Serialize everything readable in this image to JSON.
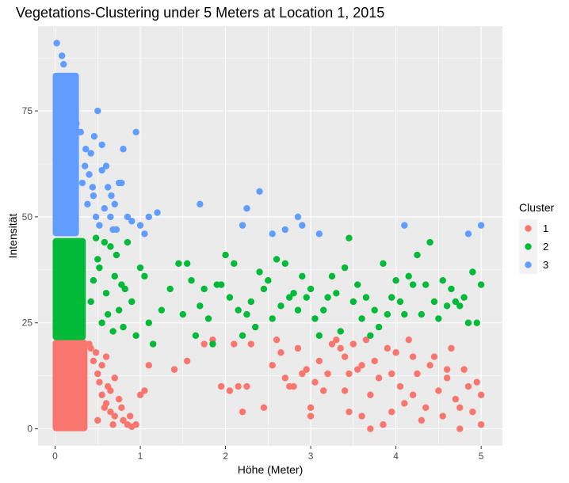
{
  "chart_data": {
    "type": "scatter",
    "title": "Vegetations-Clustering under 5 Meters at Location 1, 2015",
    "xlabel": "Höhe (Meter)",
    "ylabel": "Intensität",
    "xlim": [
      -0.2,
      5.25
    ],
    "ylim": [
      -4,
      95
    ],
    "x_ticks": [
      0,
      1,
      2,
      3,
      4,
      5
    ],
    "y_ticks": [
      0,
      25,
      50,
      75
    ],
    "grid": true,
    "legend": {
      "title": "Cluster",
      "position": "right",
      "entries": [
        {
          "label": "1",
          "color": "#F8766D"
        },
        {
          "label": "2",
          "color": "#00BA38"
        },
        {
          "label": "3",
          "color": "#619CFF"
        }
      ]
    },
    "dense_regions": [
      {
        "cluster": "1",
        "color": "#F8766D",
        "x_range": [
          0,
          0.38
        ],
        "y_range": [
          0,
          21
        ]
      },
      {
        "cluster": "2",
        "color": "#00BA38",
        "x_range": [
          0,
          0.36
        ],
        "y_range": [
          21.5,
          45
        ]
      },
      {
        "cluster": "3",
        "color": "#619CFF",
        "x_range": [
          0,
          0.28
        ],
        "y_range": [
          46,
          84
        ]
      }
    ],
    "series": [
      {
        "name": "1",
        "color": "#F8766D",
        "points": [
          [
            0.42,
            19
          ],
          [
            0.45,
            16
          ],
          [
            0.5,
            13
          ],
          [
            0.52,
            11
          ],
          [
            0.55,
            8
          ],
          [
            0.6,
            6
          ],
          [
            0.65,
            4
          ],
          [
            0.7,
            3
          ],
          [
            0.75,
            7
          ],
          [
            0.8,
            2
          ],
          [
            0.85,
            1
          ],
          [
            0.9,
            0.5
          ],
          [
            0.95,
            1
          ],
          [
            0.62,
            10
          ],
          [
            0.48,
            18
          ],
          [
            0.55,
            15
          ],
          [
            0.7,
            12
          ],
          [
            0.58,
            5
          ],
          [
            0.68,
            1
          ],
          [
            0.78,
            5
          ],
          [
            0.88,
            3
          ],
          [
            0.4,
            20
          ],
          [
            0.6,
            17
          ],
          [
            0.5,
            2
          ],
          [
            0.65,
            9
          ],
          [
            1.0,
            8
          ],
          [
            1.05,
            9
          ],
          [
            1.1,
            15
          ],
          [
            1.4,
            14
          ],
          [
            1.55,
            16
          ],
          [
            1.75,
            20
          ],
          [
            1.85,
            21
          ],
          [
            1.95,
            10
          ],
          [
            2.05,
            9
          ],
          [
            2.1,
            20
          ],
          [
            2.15,
            10
          ],
          [
            2.2,
            4
          ],
          [
            2.25,
            10
          ],
          [
            2.3,
            20
          ],
          [
            2.45,
            5
          ],
          [
            2.55,
            15
          ],
          [
            2.6,
            21
          ],
          [
            2.65,
            18
          ],
          [
            2.7,
            12
          ],
          [
            2.75,
            10
          ],
          [
            2.8,
            10
          ],
          [
            2.85,
            19
          ],
          [
            2.9,
            13
          ],
          [
            2.95,
            14
          ],
          [
            3.0,
            5
          ],
          [
            3.0,
            3
          ],
          [
            3.05,
            11
          ],
          [
            3.1,
            16
          ],
          [
            3.15,
            9
          ],
          [
            3.2,
            13
          ],
          [
            3.25,
            20
          ],
          [
            3.3,
            21
          ],
          [
            3.35,
            19
          ],
          [
            3.4,
            17
          ],
          [
            3.4,
            9
          ],
          [
            3.45,
            4
          ],
          [
            3.5,
            20
          ],
          [
            3.55,
            14
          ],
          [
            3.6,
            15
          ],
          [
            3.65,
            21
          ],
          [
            3.7,
            8
          ],
          [
            3.7,
            0
          ],
          [
            3.75,
            16
          ],
          [
            3.8,
            12
          ],
          [
            3.85,
            1
          ],
          [
            3.9,
            19
          ],
          [
            3.95,
            4
          ],
          [
            4.0,
            18
          ],
          [
            4.05,
            10
          ],
          [
            4.1,
            6
          ],
          [
            4.15,
            21
          ],
          [
            4.2,
            8
          ],
          [
            4.25,
            13
          ],
          [
            4.3,
            2
          ],
          [
            4.35,
            5
          ],
          [
            4.4,
            15
          ],
          [
            4.45,
            17
          ],
          [
            4.5,
            9
          ],
          [
            4.55,
            3
          ],
          [
            4.6,
            12
          ],
          [
            4.65,
            19
          ],
          [
            4.7,
            7
          ],
          [
            4.75,
            5
          ],
          [
            4.8,
            14
          ],
          [
            4.85,
            10
          ],
          [
            4.9,
            4
          ],
          [
            4.95,
            11
          ],
          [
            5.0,
            8
          ],
          [
            5.0,
            1
          ],
          [
            3.95,
            13
          ],
          [
            4.2,
            17
          ],
          [
            3.45,
            13
          ],
          [
            3.6,
            3
          ],
          [
            4.6,
            14
          ],
          [
            4.75,
            0
          ]
        ]
      },
      {
        "name": "2",
        "color": "#00BA38",
        "points": [
          [
            0.42,
            30
          ],
          [
            0.45,
            35
          ],
          [
            0.5,
            40
          ],
          [
            0.55,
            25
          ],
          [
            0.6,
            32
          ],
          [
            0.65,
            43
          ],
          [
            0.7,
            36
          ],
          [
            0.75,
            28
          ],
          [
            0.8,
            24
          ],
          [
            0.85,
            44
          ],
          [
            0.9,
            30
          ],
          [
            0.95,
            22
          ],
          [
            0.52,
            38
          ],
          [
            0.62,
            27
          ],
          [
            0.72,
            41
          ],
          [
            0.82,
            33
          ],
          [
            0.48,
            45
          ],
          [
            0.58,
            44
          ],
          [
            0.68,
            23
          ],
          [
            0.78,
            34
          ],
          [
            1.0,
            38
          ],
          [
            1.05,
            36
          ],
          [
            1.1,
            25
          ],
          [
            1.15,
            20
          ],
          [
            1.25,
            28
          ],
          [
            1.35,
            33
          ],
          [
            1.45,
            39
          ],
          [
            1.5,
            27
          ],
          [
            1.55,
            39
          ],
          [
            1.6,
            35
          ],
          [
            1.65,
            22
          ],
          [
            1.7,
            29
          ],
          [
            1.75,
            33
          ],
          [
            1.8,
            26
          ],
          [
            1.85,
            20
          ],
          [
            1.9,
            34
          ],
          [
            1.95,
            34
          ],
          [
            2.0,
            41
          ],
          [
            2.05,
            31
          ],
          [
            2.1,
            39
          ],
          [
            2.15,
            28
          ],
          [
            2.2,
            22
          ],
          [
            2.25,
            27
          ],
          [
            2.3,
            30
          ],
          [
            2.35,
            24
          ],
          [
            2.4,
            37
          ],
          [
            2.45,
            33
          ],
          [
            2.5,
            35
          ],
          [
            2.55,
            26
          ],
          [
            2.6,
            40
          ],
          [
            2.65,
            29
          ],
          [
            2.7,
            39
          ],
          [
            2.75,
            31
          ],
          [
            2.8,
            32
          ],
          [
            2.85,
            28
          ],
          [
            2.9,
            36
          ],
          [
            2.95,
            31
          ],
          [
            3.0,
            33
          ],
          [
            3.05,
            26
          ],
          [
            3.1,
            22
          ],
          [
            3.15,
            28
          ],
          [
            3.2,
            31
          ],
          [
            3.25,
            36
          ],
          [
            3.3,
            32
          ],
          [
            3.35,
            23
          ],
          [
            3.4,
            38
          ],
          [
            3.45,
            45
          ],
          [
            3.5,
            30
          ],
          [
            3.55,
            34
          ],
          [
            3.6,
            26
          ],
          [
            3.65,
            31
          ],
          [
            3.7,
            22
          ],
          [
            3.75,
            28
          ],
          [
            3.8,
            24
          ],
          [
            3.85,
            39
          ],
          [
            3.9,
            27
          ],
          [
            3.95,
            31
          ],
          [
            4.0,
            35
          ],
          [
            4.05,
            30
          ],
          [
            4.1,
            27
          ],
          [
            4.15,
            36
          ],
          [
            4.2,
            34
          ],
          [
            4.25,
            41
          ],
          [
            4.3,
            27
          ],
          [
            4.35,
            34
          ],
          [
            4.4,
            44
          ],
          [
            4.45,
            30
          ],
          [
            4.5,
            26
          ],
          [
            4.55,
            35
          ],
          [
            4.6,
            29
          ],
          [
            4.65,
            33
          ],
          [
            4.7,
            30
          ],
          [
            4.75,
            29
          ],
          [
            4.8,
            31
          ],
          [
            4.85,
            25
          ],
          [
            4.9,
            37
          ],
          [
            4.95,
            25
          ],
          [
            5.0,
            34
          ]
        ]
      },
      {
        "name": "3",
        "color": "#619CFF",
        "points": [
          [
            0.02,
            91
          ],
          [
            0.08,
            88
          ],
          [
            0.1,
            86
          ],
          [
            0.12,
            83
          ],
          [
            0.18,
            78
          ],
          [
            0.25,
            72
          ],
          [
            0.3,
            70
          ],
          [
            0.35,
            62
          ],
          [
            0.4,
            60
          ],
          [
            0.45,
            55
          ],
          [
            0.5,
            75
          ],
          [
            0.55,
            67
          ],
          [
            0.6,
            62
          ],
          [
            0.62,
            57
          ],
          [
            0.65,
            50
          ],
          [
            0.7,
            53
          ],
          [
            0.72,
            47
          ],
          [
            0.75,
            58
          ],
          [
            0.78,
            58
          ],
          [
            0.8,
            66
          ],
          [
            0.85,
            50
          ],
          [
            0.9,
            49
          ],
          [
            0.95,
            70
          ],
          [
            1.0,
            48
          ],
          [
            1.05,
            46
          ],
          [
            1.1,
            50
          ],
          [
            0.32,
            58
          ],
          [
            0.42,
            65
          ],
          [
            0.38,
            53
          ],
          [
            0.52,
            48
          ],
          [
            0.46,
            69
          ],
          [
            0.58,
            52
          ],
          [
            0.68,
            47
          ],
          [
            0.55,
            61
          ],
          [
            0.48,
            50
          ],
          [
            0.66,
            55
          ],
          [
            0.44,
            57
          ],
          [
            0.36,
            66
          ],
          [
            1.2,
            51
          ],
          [
            1.7,
            53
          ],
          [
            2.2,
            48
          ],
          [
            2.25,
            52
          ],
          [
            2.4,
            56
          ],
          [
            2.55,
            46
          ],
          [
            2.7,
            47
          ],
          [
            2.85,
            50
          ],
          [
            2.9,
            48
          ],
          [
            3.1,
            46
          ],
          [
            4.1,
            48
          ],
          [
            4.85,
            46
          ],
          [
            5.0,
            48
          ]
        ]
      }
    ]
  }
}
